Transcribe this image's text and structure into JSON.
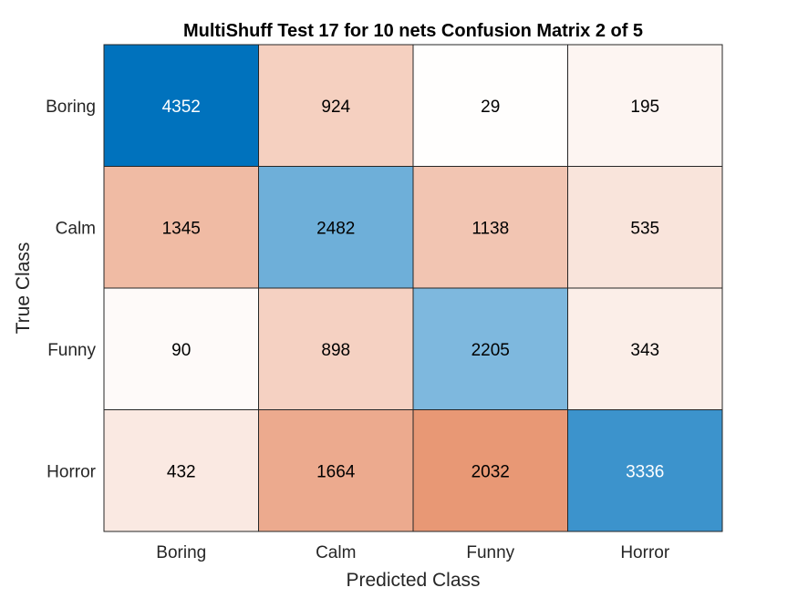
{
  "chart_data": {
    "type": "heatmap",
    "title": "MultiShuff Test 17 for 10 nets Confusion Matrix 2 of 5",
    "xlabel": "Predicted Class",
    "ylabel": "True Class",
    "row_labels": [
      "Boring",
      "Calm",
      "Funny",
      "Horror"
    ],
    "col_labels": [
      "Boring",
      "Calm",
      "Funny",
      "Horror"
    ],
    "values": [
      [
        4352,
        924,
        29,
        195
      ],
      [
        1345,
        2482,
        1138,
        535
      ],
      [
        90,
        898,
        2205,
        343
      ],
      [
        432,
        1664,
        2032,
        3336
      ]
    ],
    "colors": {
      "diagonal_high": "#0072bd",
      "diagonal_low": "#ffffff",
      "offdiag_high": "#d95319",
      "offdiag_low": "#ffffff",
      "grid": "#262626",
      "text_dark": "#000000",
      "text_light": "#ffffff"
    }
  }
}
